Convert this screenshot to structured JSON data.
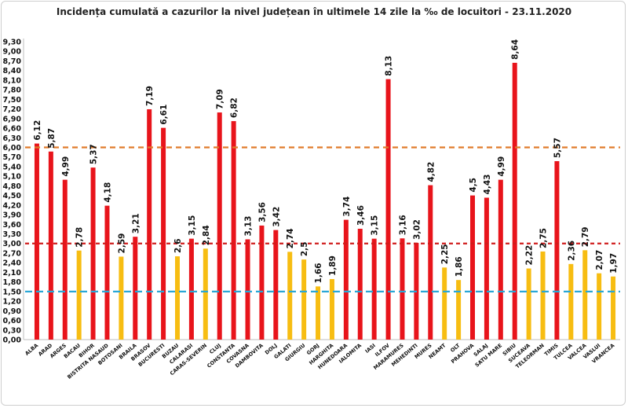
{
  "chart_data": {
    "type": "bar",
    "title": "Incidența cumulată a cazurilor la nivel județean în ultimele 14 zile la ‰ de locuitori - 23.11.2020",
    "xlabel": "",
    "ylabel": "",
    "ylim": [
      0,
      9.3
    ],
    "ytick_step": 0.3,
    "grid": false,
    "categories": [
      "ALBA",
      "ARAD",
      "ARGES",
      "BACAU",
      "BIHOR",
      "BISTRITA NASAUD",
      "BOTOSANI",
      "BRAILA",
      "BRASOV",
      "BUCURESTI",
      "BUZAU",
      "CALARASI",
      "CARAS-SEVERIN",
      "CLUJ",
      "CONSTANTA",
      "COVASNA",
      "DAMBOVITA",
      "DOLJ",
      "GALATI",
      "GIURGIU",
      "GORJ",
      "HARGHITA",
      "HUNEDOARA",
      "IALOMITA",
      "IASI",
      "ILFOV",
      "MARAMURES",
      "MEHEDINTI",
      "MURES",
      "NEAMT",
      "OLT",
      "PRAHOVA",
      "SALAJ",
      "SATU MARE",
      "SIBIU",
      "SUCEAVA",
      "TELEORMAN",
      "TIMIS",
      "TULCEA",
      "VALCEA",
      "VASLUI",
      "VRANCEA"
    ],
    "values": [
      6.12,
      5.87,
      4.99,
      2.78,
      5.37,
      4.18,
      2.59,
      3.21,
      7.19,
      6.61,
      2.6,
      3.15,
      2.84,
      7.09,
      6.82,
      3.13,
      3.56,
      3.42,
      2.74,
      2.5,
      1.66,
      1.89,
      3.74,
      3.46,
      3.15,
      8.13,
      3.16,
      3.02,
      4.82,
      2.25,
      1.86,
      4.5,
      4.43,
      4.99,
      8.64,
      2.22,
      2.75,
      5.57,
      2.36,
      2.79,
      2.07,
      1.97
    ],
    "value_labels": [
      "6,12",
      "5,87",
      "4,99",
      "2,78",
      "5,37",
      "4,18",
      "2,59",
      "3,21",
      "7,19",
      "6,61",
      "2,6",
      "3,15",
      "2,84",
      "7,09",
      "6,82",
      "3,13",
      "3,56",
      "3,42",
      "2,74",
      "2,5",
      "1,66",
      "1,89",
      "3,74",
      "3,46",
      "3,15",
      "8,13",
      "3,16",
      "3,02",
      "4,82",
      "2,25",
      "1,86",
      "4,5",
      "4,43",
      "4,99",
      "8,64",
      "2,22",
      "2,75",
      "5,57",
      "2,36",
      "2,79",
      "2,07",
      "1,97"
    ],
    "bar_colors": [
      "red",
      "red",
      "red",
      "yellow",
      "red",
      "red",
      "yellow",
      "red",
      "red",
      "red",
      "yellow",
      "red",
      "yellow",
      "red",
      "red",
      "red",
      "red",
      "red",
      "yellow",
      "yellow",
      "yellow",
      "yellow",
      "red",
      "red",
      "red",
      "red",
      "red",
      "red",
      "red",
      "yellow",
      "yellow",
      "red",
      "red",
      "red",
      "red",
      "yellow",
      "yellow",
      "red",
      "yellow",
      "yellow",
      "yellow",
      "yellow"
    ],
    "thresholds": [
      {
        "value": 6.0,
        "style": "dashed",
        "color": "#e07b2a"
      },
      {
        "value": 3.0,
        "style": "dashed",
        "color": "#d01c1c"
      },
      {
        "value": 1.5,
        "style": "dashed",
        "color": "#2aa7d6"
      }
    ]
  },
  "colors": {
    "red": "#e8141b",
    "yellow": "#f7bd12",
    "axis": "#bdbdbd"
  }
}
